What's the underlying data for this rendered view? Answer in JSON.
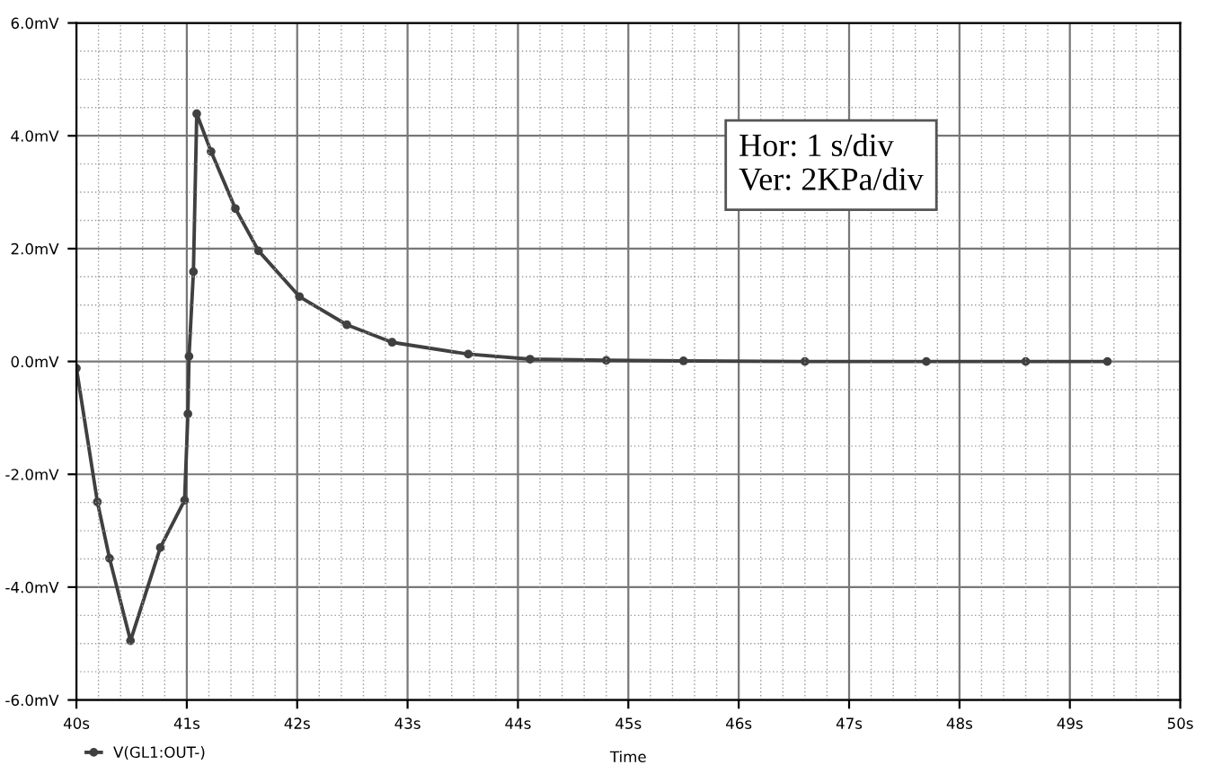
{
  "chart_data": {
    "type": "line",
    "xlabel": "Time",
    "x": [
      40.0,
      40.19,
      40.3,
      40.49,
      40.76,
      40.98,
      41.01,
      41.02,
      41.06,
      41.09,
      41.22,
      41.44,
      41.65,
      42.02,
      42.45,
      42.86,
      43.55,
      44.11,
      44.8,
      45.5,
      46.6,
      47.7,
      48.6,
      49.34
    ],
    "series": [
      {
        "name": "V(GL1:OUT-)",
        "color": "#404040",
        "values": [
          -0.12,
          -2.49,
          -3.49,
          -4.95,
          -3.3,
          -2.46,
          -0.93,
          0.09,
          1.59,
          4.39,
          3.72,
          2.71,
          1.96,
          1.15,
          0.65,
          0.34,
          0.13,
          0.04,
          0.02,
          0.01,
          0.0,
          0.0,
          0.0,
          0.0
        ]
      }
    ],
    "xlim": [
      40,
      50
    ],
    "xticks": [
      {
        "value": 40,
        "label": "40s"
      },
      {
        "value": 41,
        "label": "41s"
      },
      {
        "value": 42,
        "label": "42s"
      },
      {
        "value": 43,
        "label": "43s"
      },
      {
        "value": 44,
        "label": "44s"
      },
      {
        "value": 45,
        "label": "45s"
      },
      {
        "value": 46,
        "label": "46s"
      },
      {
        "value": 47,
        "label": "47s"
      },
      {
        "value": 48,
        "label": "48s"
      },
      {
        "value": 49,
        "label": "49s"
      },
      {
        "value": 50,
        "label": "50s"
      }
    ],
    "ylim": [
      -6,
      6
    ],
    "yticks": [
      {
        "value": -6,
        "label": "-6.0mV"
      },
      {
        "value": -4,
        "label": "-4.0mV"
      },
      {
        "value": -2,
        "label": "-2.0mV"
      },
      {
        "value": 0,
        "label": "0.0mV"
      },
      {
        "value": 2,
        "label": "2.0mV"
      },
      {
        "value": 4,
        "label": "4.0mV"
      },
      {
        "value": 6,
        "label": "6.0mV"
      }
    ],
    "grid": true,
    "legend": "bottom left",
    "marker": "circle",
    "line_style": "solid",
    "annotations": [
      "Hor: 1 s/div\nVer: 2KPa/div"
    ]
  }
}
